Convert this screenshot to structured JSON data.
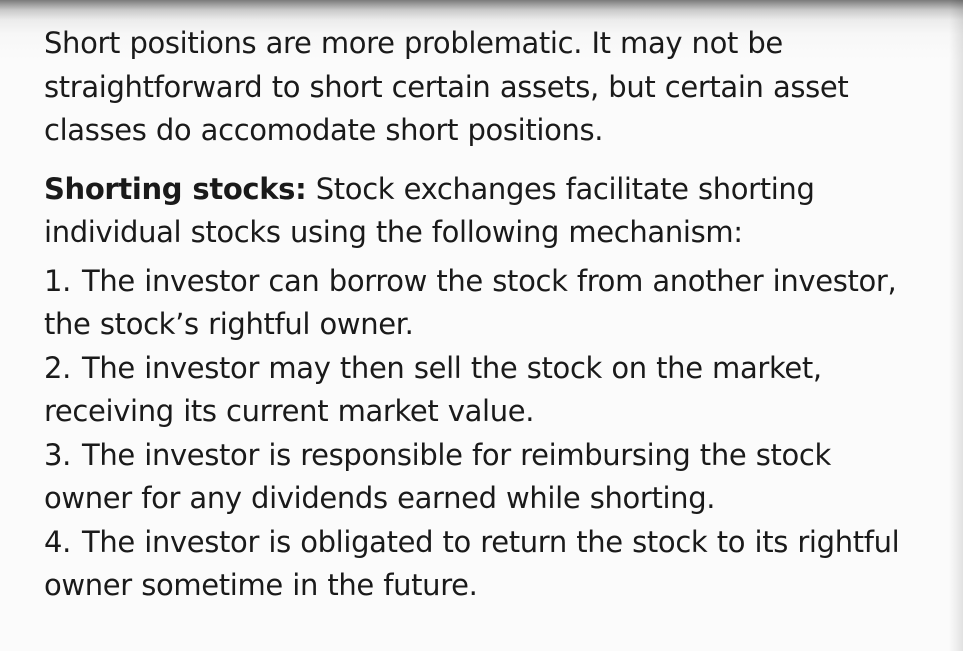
{
  "slide": {
    "intro": "Short positions are more problematic. It may not be straightforward to short certain assets, but certain asset classes do accomodate short positions.",
    "definition": {
      "term": "Shorting stocks:",
      "text": "Stock exchanges facilitate shorting individual stocks using the following mechanism:"
    },
    "steps": [
      {
        "number": "1.",
        "text": "The investor can borrow the stock from another investor, the stock’s rightful owner."
      },
      {
        "number": "2.",
        "text": "The investor may then sell the stock on the market, receiving its current market value."
      },
      {
        "number": "3.",
        "text": "The investor is responsible for reimbursing the stock owner for any dividends earned while shorting."
      },
      {
        "number": "4.",
        "text": "The investor is obligated to return the stock to its rightful owner sometime in the future."
      }
    ]
  }
}
